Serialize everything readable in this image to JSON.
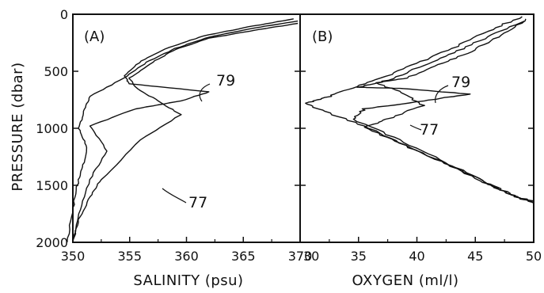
{
  "chart_data": [
    {
      "type": "line",
      "panel_label": "(A)",
      "xlabel": "SALINITY (psu)",
      "ylabel": "PRESSURE (dbar)",
      "xlim": [
        35.0,
        37.0
      ],
      "ylim": [
        2000,
        0
      ],
      "x_tick_labels": [
        "350",
        "355",
        "360",
        "365",
        "370"
      ],
      "x_ticks": [
        35.0,
        35.5,
        36.0,
        36.5,
        37.0
      ],
      "y_ticks": [
        0,
        500,
        1000,
        1500,
        2000
      ],
      "y_tick_labels": [
        "0",
        "500",
        "1000",
        "1500",
        "2000"
      ],
      "grid": false,
      "annotations": [
        "79",
        "77"
      ],
      "series": [
        {
          "points": [
            [
              36.98,
              60
            ],
            [
              36.6,
              120
            ],
            [
              36.2,
              200
            ],
            [
              35.9,
              300
            ],
            [
              35.65,
              420
            ],
            [
              35.45,
              560
            ],
            [
              35.15,
              720
            ],
            [
              35.1,
              850
            ],
            [
              35.05,
              1000
            ],
            [
              35.12,
              1150
            ],
            [
              35.1,
              1300
            ],
            [
              35.05,
              1450
            ],
            [
              35.0,
              1700
            ],
            [
              34.95,
              2000
            ]
          ]
        },
        {
          "points": [
            [
              36.95,
              40
            ],
            [
              36.55,
              110
            ],
            [
              36.15,
              190
            ],
            [
              35.85,
              290
            ],
            [
              35.6,
              410
            ],
            [
              35.45,
              540
            ],
            [
              35.5,
              610
            ],
            [
              36.2,
              680
            ],
            [
              35.95,
              760
            ],
            [
              35.55,
              830
            ],
            [
              35.15,
              980
            ],
            [
              35.3,
              1200
            ],
            [
              35.15,
              1450
            ],
            [
              35.05,
              1750
            ],
            [
              35.0,
              2000
            ]
          ]
        },
        {
          "points": [
            [
              36.98,
              80
            ],
            [
              36.6,
              140
            ],
            [
              36.2,
              210
            ],
            [
              35.9,
              310
            ],
            [
              35.7,
              420
            ],
            [
              35.5,
              560
            ],
            [
              35.55,
              640
            ],
            [
              35.75,
              760
            ],
            [
              35.95,
              880
            ],
            [
              35.6,
              1100
            ],
            [
              35.25,
              1450
            ],
            [
              35.15,
              1600
            ],
            [
              35.05,
              1800
            ],
            [
              35.0,
              2000
            ]
          ]
        }
      ]
    },
    {
      "type": "line",
      "panel_label": "(B)",
      "xlabel": "OXYGEN (ml/l)",
      "xlim": [
        3.0,
        5.0
      ],
      "ylim": [
        2000,
        0
      ],
      "x_tick_labels": [
        "30",
        "35",
        "40",
        "45",
        "50"
      ],
      "x_ticks": [
        3.0,
        3.5,
        4.0,
        4.5,
        5.0
      ],
      "grid": false,
      "annotations": [
        "79",
        "77"
      ],
      "series": [
        {
          "points": [
            [
              4.9,
              20
            ],
            [
              4.6,
              150
            ],
            [
              4.3,
              300
            ],
            [
              4.0,
              430
            ],
            [
              3.7,
              560
            ],
            [
              3.4,
              660
            ],
            [
              3.2,
              740
            ],
            [
              3.05,
              780
            ],
            [
              3.2,
              850
            ],
            [
              3.55,
              980
            ],
            [
              3.9,
              1150
            ],
            [
              4.3,
              1330
            ],
            [
              4.6,
              1480
            ],
            [
              4.8,
              1580
            ],
            [
              5.0,
              1660
            ]
          ]
        },
        {
          "points": [
            [
              4.95,
              40
            ],
            [
              4.65,
              180
            ],
            [
              4.35,
              320
            ],
            [
              4.05,
              450
            ],
            [
              3.75,
              580
            ],
            [
              3.5,
              640
            ],
            [
              3.85,
              650
            ],
            [
              4.45,
              700
            ],
            [
              4.05,
              760
            ],
            [
              3.55,
              830
            ],
            [
              3.45,
              920
            ],
            [
              3.85,
              1100
            ],
            [
              4.25,
              1300
            ],
            [
              4.6,
              1480
            ],
            [
              4.85,
              1600
            ],
            [
              5.0,
              1640
            ]
          ]
        },
        {
          "points": [
            [
              4.92,
              60
            ],
            [
              4.7,
              200
            ],
            [
              4.45,
              330
            ],
            [
              4.2,
              440
            ],
            [
              3.9,
              560
            ],
            [
              3.65,
              600
            ],
            [
              3.9,
              700
            ],
            [
              4.05,
              800
            ],
            [
              3.75,
              920
            ],
            [
              3.55,
              990
            ],
            [
              3.85,
              1130
            ],
            [
              4.2,
              1290
            ],
            [
              4.55,
              1460
            ],
            [
              4.8,
              1580
            ],
            [
              5.0,
              1650
            ]
          ]
        }
      ]
    }
  ]
}
